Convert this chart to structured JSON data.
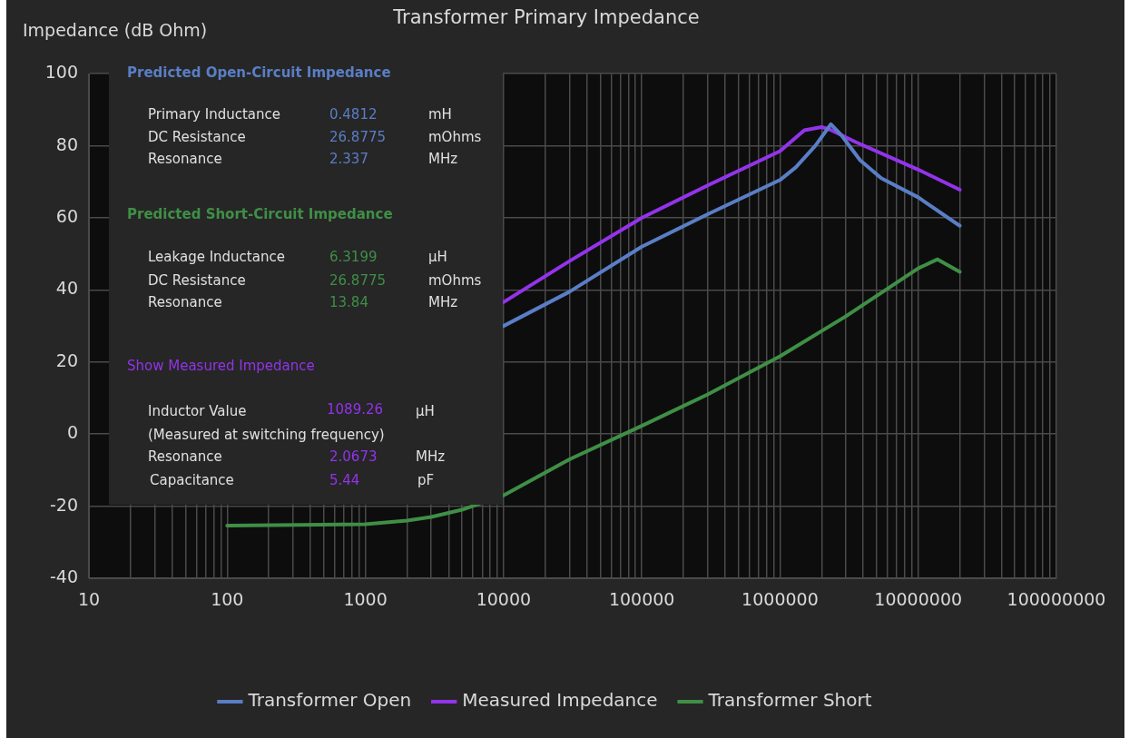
{
  "chart_data": {
    "type": "line",
    "title": "Transformer Primary Impedance",
    "ylabel": "Impedance (dB Ohm)",
    "log": "x",
    "grid": true,
    "legend": "bottom",
    "marker": "none",
    "line_style": "solid",
    "xlim": [
      10,
      100000000
    ],
    "ylim": [
      -40,
      100
    ],
    "xticks": [
      10,
      {
        "value": 20,
        "label": null
      },
      {
        "value": 30,
        "label": null
      },
      {
        "value": 40,
        "label": null
      },
      {
        "value": 50,
        "label": null
      },
      {
        "value": 60,
        "label": null
      },
      {
        "value": 70,
        "label": null
      },
      {
        "value": 80,
        "label": null
      },
      {
        "value": 90,
        "label": null
      },
      100,
      {
        "value": 200,
        "label": null
      },
      {
        "value": 300,
        "label": null
      },
      {
        "value": 400,
        "label": null
      },
      {
        "value": 500,
        "label": null
      },
      {
        "value": 600,
        "label": null
      },
      {
        "value": 700,
        "label": null
      },
      {
        "value": 800,
        "label": null
      },
      {
        "value": 900,
        "label": null
      },
      1000,
      {
        "value": 2000,
        "label": null
      },
      {
        "value": 3000,
        "label": null
      },
      {
        "value": 4000,
        "label": null
      },
      {
        "value": 5000,
        "label": null
      },
      {
        "value": 6000,
        "label": null
      },
      {
        "value": 7000,
        "label": null
      },
      {
        "value": 8000,
        "label": null
      },
      {
        "value": 9000,
        "label": null
      },
      10000,
      {
        "value": 20000,
        "label": null
      },
      {
        "value": 30000,
        "label": null
      },
      {
        "value": 40000,
        "label": null
      },
      {
        "value": 50000,
        "label": null
      },
      {
        "value": 60000,
        "label": null
      },
      {
        "value": 70000,
        "label": null
      },
      {
        "value": 80000,
        "label": null
      },
      {
        "value": 90000,
        "label": null
      },
      100000,
      {
        "value": 200000,
        "label": null
      },
      {
        "value": 300000,
        "label": null
      },
      {
        "value": 400000,
        "label": null
      },
      {
        "value": 500000,
        "label": null
      },
      {
        "value": 600000,
        "label": null
      },
      {
        "value": 700000,
        "label": null
      },
      {
        "value": 800000,
        "label": null
      },
      {
        "value": 900000,
        "label": null
      },
      1000000,
      {
        "value": 2000000,
        "label": null
      },
      {
        "value": 3000000,
        "label": null
      },
      {
        "value": 4000000,
        "label": null
      },
      {
        "value": 5000000,
        "label": null
      },
      {
        "value": 6000000,
        "label": null
      },
      {
        "value": 7000000,
        "label": null
      },
      {
        "value": 8000000,
        "label": null
      },
      {
        "value": 9000000,
        "label": null
      },
      10000000,
      {
        "value": 20000000,
        "label": null
      },
      {
        "value": 30000000,
        "label": null
      },
      {
        "value": 40000000,
        "label": null
      },
      {
        "value": 50000000,
        "label": null
      },
      {
        "value": 60000000,
        "label": null
      },
      {
        "value": 70000000,
        "label": null
      },
      {
        "value": 80000000,
        "label": null
      },
      {
        "value": 90000000,
        "label": null
      },
      100000000
    ],
    "yticks": [
      -40,
      -20,
      0,
      20,
      40,
      60,
      80,
      100
    ],
    "series": [
      {
        "name": "Transformer Open",
        "color": "#5a7ec6",
        "x": [
          10000,
          30000,
          100000,
          300000,
          1000000,
          1300000,
          1800000,
          2337000,
          2800000,
          3800000,
          5400000,
          10000000,
          20000000
        ],
        "values": [
          30,
          39.5,
          52,
          61,
          70.5,
          74,
          80,
          86,
          82.8,
          76,
          71,
          65.7,
          57.8
        ]
      },
      {
        "name": "Measured Impedance",
        "color": "#9333ea",
        "x": [
          10000,
          30000,
          100000,
          300000,
          1000000,
          1500000,
          2000000,
          2300000,
          3500000,
          10000000,
          20000000
        ],
        "values": [
          36.6,
          48,
          60,
          69,
          78.5,
          84.3,
          85.2,
          84.5,
          81.1,
          73.4,
          67.8
        ]
      },
      {
        "name": "Transformer Short",
        "color": "#3f8f46",
        "x": [
          100,
          1000,
          2000,
          3000,
          5000,
          10000,
          30000,
          100000,
          300000,
          1000000,
          3000000,
          10000000,
          13800000,
          20000000
        ],
        "values": [
          -25.4,
          -25,
          -24,
          -23,
          -21,
          -17,
          -7,
          2.3,
          11,
          21.6,
          32.7,
          46,
          48.5,
          45
        ]
      }
    ],
    "annotations": [
      "Predicted Open-Circuit Impedance",
      "Primary Inductance",
      "0.4812",
      "mH",
      "DC Resistance",
      "26.8775",
      "mOhms",
      "Resonance",
      "2.337",
      "MHz",
      "Predicted Short-Circuit Impedance",
      "Leakage Inductance",
      "6.3199",
      "µH",
      "DC Resistance",
      "26.8775",
      "mOhms",
      "Resonance",
      "13.84",
      "MHz",
      "Show Measured Impedance",
      "Inductor Value",
      "1089.26",
      "µH",
      "(Measured at  switching frequency)",
      "Resonance",
      "2.0673",
      "MHz",
      "Capacitance",
      "5.44",
      "pF"
    ]
  }
}
